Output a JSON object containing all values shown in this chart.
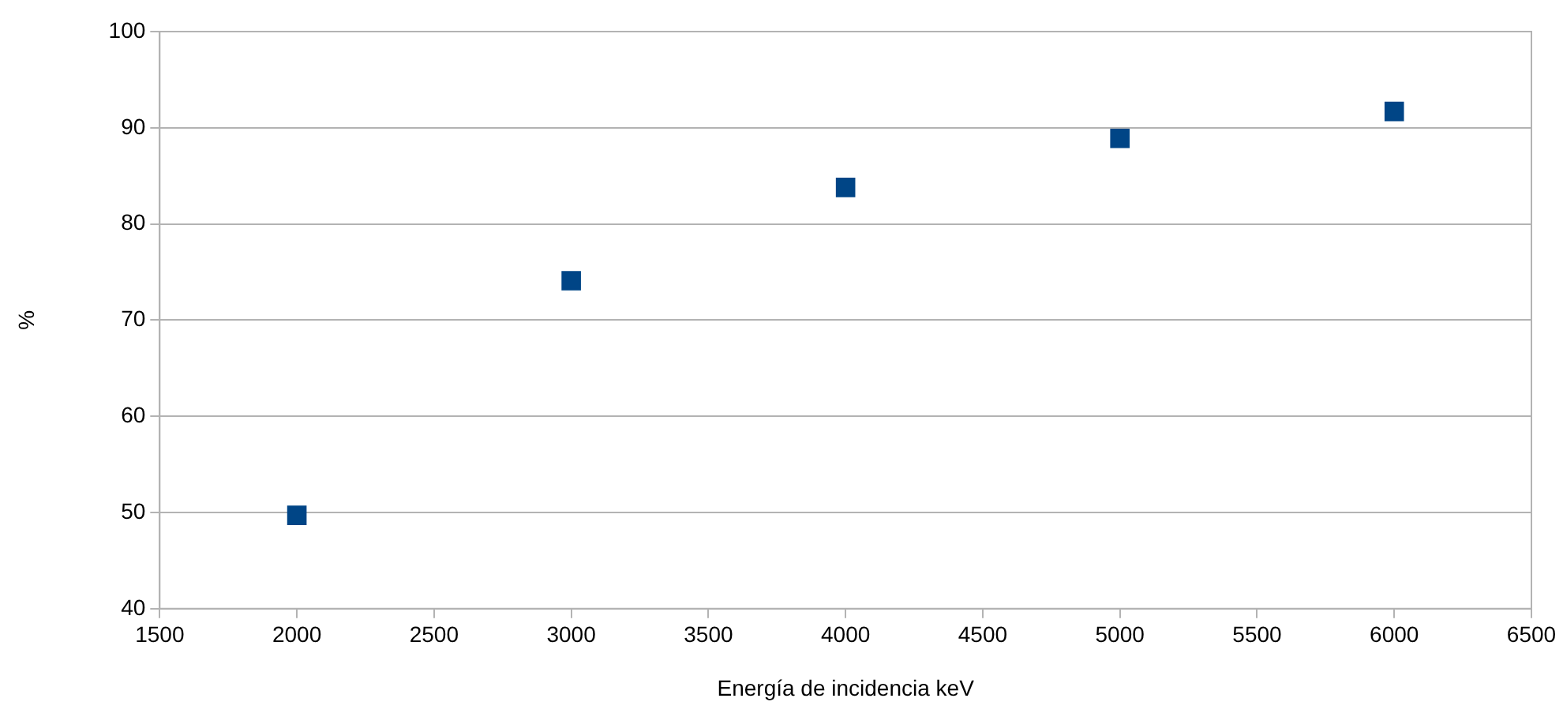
{
  "chart_data": {
    "type": "scatter",
    "xlabel": "Energía de incidencia keV",
    "ylabel": "%",
    "x": [
      2000,
      3000,
      4000,
      5000,
      6000
    ],
    "series": [
      {
        "color": "#004586",
        "values": [
          49.7,
          74.1,
          83.8,
          88.9,
          91.7
        ]
      }
    ],
    "xlim": [
      1500,
      6500
    ],
    "xticks": [
      1500,
      2000,
      2500,
      3000,
      3500,
      4000,
      4500,
      5000,
      5500,
      6000,
      6500
    ],
    "ylim": [
      40,
      100
    ],
    "yticks": [
      40,
      50,
      60,
      70,
      80,
      90,
      100
    ],
    "grid": "y",
    "legend": false,
    "marker": "square"
  }
}
